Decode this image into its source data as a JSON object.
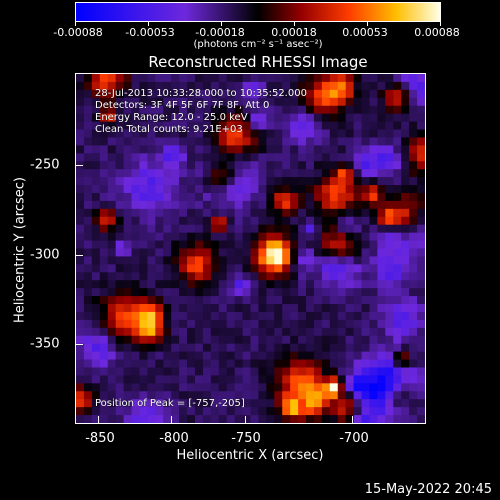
{
  "colorbar": {
    "labels": [
      "-0.00088",
      "-0.00053",
      "-0.00018",
      "0.00018",
      "0.00053",
      "0.00088"
    ],
    "units": "(photons cm⁻² s⁻¹ asec⁻²)"
  },
  "title": "Reconstructed RHESSI Image",
  "annotations": {
    "time": "28-Jul-2013 10:33:28.000 to 10:35:52.000",
    "detectors": "Detectors: 3F 4F 5F 6F 7F 8F, Att 0",
    "energy": "Energy Range: 12.0 - 25.0 keV",
    "clean": "Clean     Total counts: 9.21E+03",
    "peak": "Position of Peak = [-757,-205]"
  },
  "axes": {
    "xlabel": "Heliocentric X (arcsec)",
    "ylabel": "Heliocentric Y (arcsec)",
    "xticks": [
      "-850",
      "-800",
      "-750",
      "-700"
    ],
    "yticks": [
      "-250",
      "-300",
      "-350"
    ]
  },
  "datestamp": "15-May-2022 20:45",
  "colors": {
    "background": "#000000",
    "foreground": "#ffffff"
  }
}
